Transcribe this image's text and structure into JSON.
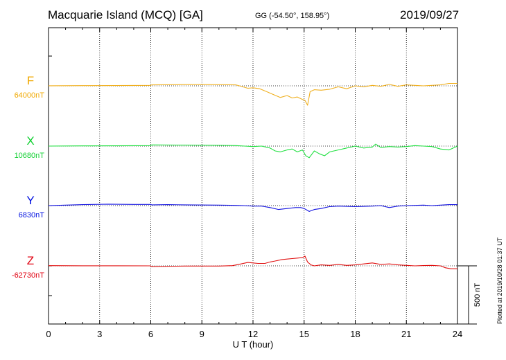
{
  "header": {
    "title": "Macquarie Island (MCQ)  [GA]",
    "coords": "GG (-54.50°, 158.95°)",
    "date": "2019/09/27"
  },
  "footer": {
    "plotted": "Plotted at 2019/10/28 01:37 UT"
  },
  "chart_data": {
    "type": "line",
    "xlabel": "U T (hour)",
    "xlim": [
      0,
      24
    ],
    "xticks": [
      0,
      3,
      6,
      9,
      12,
      15,
      18,
      21,
      24
    ],
    "grid": true,
    "scale_bar": {
      "label": "500 nT",
      "value": 500
    },
    "series": [
      {
        "name": "F",
        "baseline_label": "64000nT",
        "color": "#f0b020",
        "label_color": "#f0a800",
        "x": [
          0,
          2,
          4,
          6,
          6.05,
          8,
          10,
          11,
          11.4,
          11.7,
          12,
          12.4,
          12.8,
          13.2,
          13.6,
          14,
          14.3,
          14.6,
          14.9,
          15.05,
          15.2,
          15.35,
          15.6,
          16,
          16.5,
          17,
          17.5,
          18,
          18.5,
          19,
          19.5,
          20,
          20.5,
          21,
          21.5,
          22,
          22.5,
          23,
          23.5,
          24
        ],
        "y": [
          1,
          2,
          3,
          5,
          10,
          13,
          12,
          10,
          -10,
          -25,
          -20,
          -30,
          -60,
          -90,
          -120,
          -100,
          -125,
          -115,
          -140,
          -150,
          -200,
          -60,
          -40,
          -45,
          -35,
          -10,
          -30,
          0,
          -10,
          5,
          -5,
          15,
          -5,
          10,
          5,
          0,
          5,
          10,
          25,
          25
        ]
      },
      {
        "name": "X",
        "baseline_label": "10680nT",
        "color": "#20e040",
        "label_color": "#10d030",
        "x": [
          0,
          2,
          4,
          6,
          6.05,
          8,
          10,
          11,
          11.5,
          12,
          12.5,
          13,
          13.3,
          13.6,
          14,
          14.3,
          14.6,
          14.9,
          15.1,
          15.3,
          15.6,
          15.9,
          16.2,
          16.5,
          17,
          17.5,
          18,
          18.5,
          19,
          19.2,
          19.5,
          20,
          20.5,
          21,
          21.5,
          22,
          22.5,
          23,
          23.5,
          24
        ],
        "y": [
          0,
          2,
          3,
          5,
          12,
          10,
          8,
          5,
          0,
          -5,
          0,
          -20,
          -50,
          -60,
          -40,
          -30,
          -60,
          -40,
          -100,
          -120,
          -50,
          -80,
          -100,
          -60,
          -40,
          -20,
          0,
          -20,
          -10,
          20,
          -15,
          -5,
          -10,
          -5,
          5,
          0,
          -5,
          -30,
          -40,
          0
        ]
      },
      {
        "name": "Y",
        "baseline_label": "6830nT",
        "color": "#1010e0",
        "label_color": "#0010e0",
        "x": [
          0,
          1,
          2,
          3.5,
          5,
          6,
          6.05,
          7,
          8,
          10,
          11,
          11.5,
          12,
          12.5,
          13,
          13.5,
          14,
          14.5,
          14.8,
          15,
          15.3,
          15.6,
          16,
          16.5,
          17,
          18,
          19,
          19.5,
          20,
          20.5,
          21,
          22,
          22.5,
          23,
          23.5,
          24
        ],
        "y": [
          0,
          5,
          10,
          15,
          12,
          12,
          8,
          10,
          8,
          5,
          2,
          0,
          -5,
          -5,
          -20,
          -40,
          -30,
          -20,
          -20,
          -30,
          -60,
          -40,
          -30,
          -10,
          -5,
          -10,
          -5,
          0,
          -20,
          -5,
          0,
          5,
          0,
          5,
          10,
          10
        ]
      },
      {
        "name": "Z",
        "baseline_label": "-62730nT",
        "color": "#e01010",
        "label_color": "#e00010",
        "x": [
          0,
          2,
          4,
          6,
          6.05,
          8,
          10,
          10.8,
          11.3,
          11.7,
          12,
          12.3,
          12.7,
          13,
          13.3,
          13.7,
          14,
          14.3,
          14.6,
          14.9,
          15.05,
          15.2,
          15.4,
          15.6,
          16,
          16.5,
          17,
          17.5,
          18,
          18.5,
          19,
          19.5,
          20,
          20.5,
          21,
          21.5,
          22,
          22.5,
          23,
          23.3,
          23.6,
          24
        ],
        "y": [
          2,
          1,
          1,
          0,
          -8,
          -2,
          -2,
          2,
          20,
          35,
          30,
          25,
          25,
          40,
          50,
          65,
          70,
          75,
          80,
          85,
          100,
          40,
          10,
          0,
          10,
          5,
          15,
          5,
          10,
          20,
          30,
          15,
          20,
          10,
          5,
          0,
          3,
          5,
          0,
          -20,
          -30,
          -30
        ]
      }
    ]
  }
}
